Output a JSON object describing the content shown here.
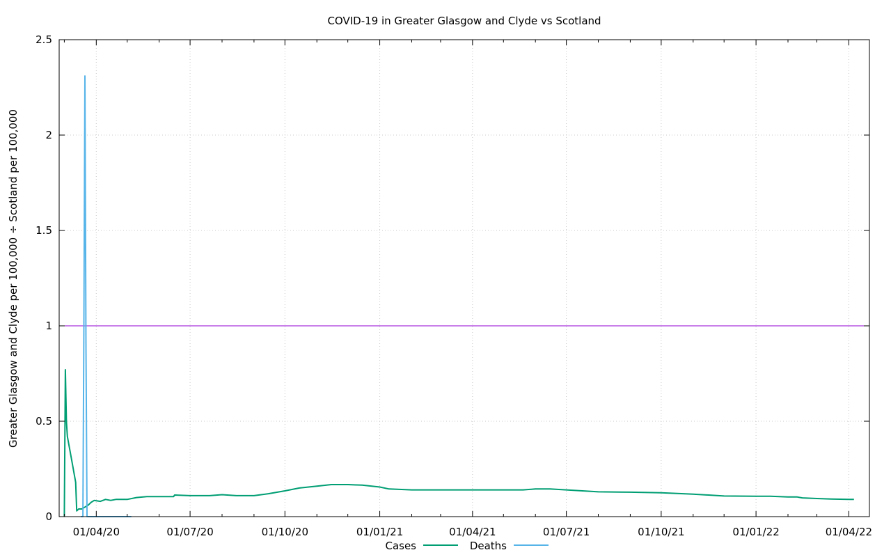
{
  "chart_data": {
    "type": "line",
    "title": "COVID-19 in Greater Glasgow and Clyde vs Scotland",
    "xlabel": "",
    "ylabel": "Greater Glasgow and Clyde per 100,000 ÷ Scotland per 100,000",
    "xlim": [
      "2020-02-25",
      "2022-04-21"
    ],
    "ylim": [
      0,
      2.5
    ],
    "y_ticks": [
      0,
      0.5,
      1,
      1.5,
      2,
      2.5
    ],
    "y_tick_labels": [
      "0",
      "0.5",
      "1",
      "1.5",
      "2",
      "2.5"
    ],
    "x_ticks": [
      "2020-04-01",
      "2020-07-01",
      "2020-10-01",
      "2021-01-01",
      "2021-04-01",
      "2021-07-01",
      "2021-10-01",
      "2022-01-01",
      "2022-04-01"
    ],
    "x_tick_labels": [
      "01/04/20",
      "01/07/20",
      "01/10/20",
      "01/01/21",
      "01/04/21",
      "01/07/21",
      "01/10/21",
      "01/01/22",
      "01/04/22"
    ],
    "grid": true,
    "legend_position": "bottom-center",
    "colors": {
      "cases": "#009e73",
      "deaths": "#56b4e9",
      "reference": "#9400d3"
    },
    "reference_line": {
      "y": 1
    },
    "series": [
      {
        "name": "Cases",
        "x": [
          "2020-03-01",
          "2020-03-02",
          "2020-03-03",
          "2020-03-04",
          "2020-03-08",
          "2020-03-12",
          "2020-03-13",
          "2020-03-15",
          "2020-03-18",
          "2020-03-21",
          "2020-03-24",
          "2020-03-27",
          "2020-03-30",
          "2020-04-05",
          "2020-04-10",
          "2020-04-15",
          "2020-04-20",
          "2020-05-01",
          "2020-05-10",
          "2020-05-20",
          "2020-06-01",
          "2020-06-10",
          "2020-06-15",
          "2020-06-16",
          "2020-07-01",
          "2020-07-20",
          "2020-08-01",
          "2020-08-15",
          "2020-09-01",
          "2020-09-15",
          "2020-10-01",
          "2020-10-15",
          "2020-11-01",
          "2020-11-15",
          "2020-12-01",
          "2020-12-15",
          "2021-01-01",
          "2021-01-10",
          "2021-02-01",
          "2021-03-01",
          "2021-04-01",
          "2021-05-01",
          "2021-05-20",
          "2021-06-01",
          "2021-06-15",
          "2021-07-01",
          "2021-08-01",
          "2021-09-01",
          "2021-10-01",
          "2021-11-01",
          "2021-12-01",
          "2022-01-01",
          "2022-01-15",
          "2022-02-01",
          "2022-02-10",
          "2022-02-15",
          "2022-03-01",
          "2022-03-15",
          "2022-04-01",
          "2022-04-06"
        ],
        "values": [
          0,
          0.77,
          0.5,
          0.42,
          0.3,
          0.18,
          0.03,
          0.04,
          0.04,
          0.05,
          0.06,
          0.075,
          0.085,
          0.08,
          0.09,
          0.085,
          0.09,
          0.09,
          0.1,
          0.105,
          0.105,
          0.105,
          0.105,
          0.113,
          0.11,
          0.11,
          0.115,
          0.11,
          0.11,
          0.12,
          0.135,
          0.15,
          0.16,
          0.168,
          0.168,
          0.165,
          0.155,
          0.145,
          0.14,
          0.14,
          0.14,
          0.14,
          0.14,
          0.145,
          0.145,
          0.14,
          0.13,
          0.128,
          0.125,
          0.118,
          0.108,
          0.107,
          0.107,
          0.103,
          0.103,
          0.098,
          0.095,
          0.092,
          0.09,
          0.09
        ]
      },
      {
        "name": "Deaths",
        "x": [
          "2020-03-17",
          "2020-03-19",
          "2020-03-20",
          "2020-03-21",
          "2020-03-22",
          "2020-03-23",
          "2020-03-25",
          "2020-04-05",
          "2020-04-20",
          "2020-05-01",
          "2020-05-05"
        ],
        "values": [
          0,
          0,
          1.0,
          2.31,
          0.9,
          0,
          0,
          0,
          0,
          0,
          0
        ]
      }
    ]
  }
}
